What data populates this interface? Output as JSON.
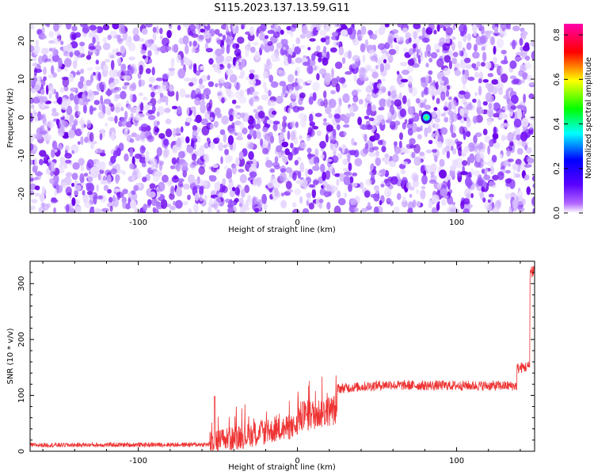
{
  "title": "S115.2023.137.13.59.G11",
  "chart_data": [
    {
      "type": "heatmap",
      "xlabel": "Height of straight line (km)",
      "ylabel": "Frequency (Hz)",
      "xlim": [
        -168,
        149
      ],
      "ylim": [
        -25,
        24.5
      ],
      "xticks": [
        -100,
        0,
        100
      ],
      "yticks": [
        -20,
        -10,
        0,
        10,
        20
      ],
      "colorbar": {
        "label": "Normalized spectral amplitude",
        "range": [
          0,
          0.85
        ],
        "ticks": [
          "0.0",
          "0.2",
          "0.4",
          "0.6",
          "0.8"
        ],
        "colormap": [
          "#ffffff",
          "#7f00ff",
          "#0000ff",
          "#00ffff",
          "#00ff00",
          "#ffff00",
          "#ff0000",
          "#ff00ff"
        ]
      },
      "noise_amplitude_range": [
        0,
        0.15
      ],
      "peak": {
        "x": 81,
        "y": 0,
        "amplitude": 0.3
      }
    },
    {
      "type": "line",
      "xlabel": "Height of straight line (km)",
      "ylabel": "SNR (10 * v/v)",
      "xlim": [
        -168,
        149
      ],
      "ylim": [
        0,
        340
      ],
      "xticks": [
        -100,
        0,
        100
      ],
      "yticks": [
        0,
        100,
        200,
        300
      ],
      "color": "#ee3333",
      "segments": [
        {
          "x": [
            -168,
            -55
          ],
          "level": [
            11,
            12
          ],
          "noise": 4
        },
        {
          "x": [
            -55,
            0
          ],
          "level": [
            15,
            45
          ],
          "noise": 22
        },
        {
          "x": [
            0,
            25
          ],
          "level": [
            60,
            75
          ],
          "noise": 28
        },
        {
          "x": [
            25,
            60
          ],
          "level": [
            112,
            120
          ],
          "noise": 9
        },
        {
          "x": [
            60,
            138
          ],
          "level": [
            118,
            117
          ],
          "noise": 9
        },
        {
          "x": [
            138,
            146
          ],
          "level": [
            148,
            152
          ],
          "noise": 10
        },
        {
          "x": [
            146,
            149
          ],
          "level": [
            320,
            325
          ],
          "noise": 15
        }
      ],
      "spike": {
        "x": -52,
        "value": 98
      }
    }
  ]
}
